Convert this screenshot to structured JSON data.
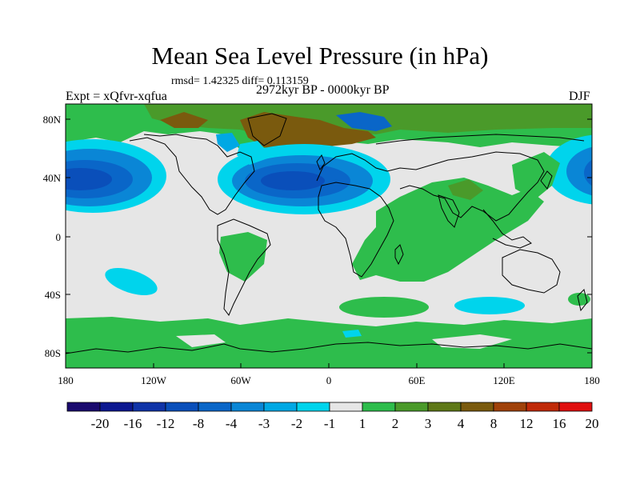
{
  "title": "Mean Sea Level Pressure (in hPa)",
  "stats": "rmsd= 1.42325 diff= 0.113159",
  "experiment": "Expt = xQfvr-xqfua",
  "period": "2972kyr BP - 0000kyr BP",
  "season": "DJF",
  "map": {
    "lat_ticks": [
      "80N",
      "40N",
      "0",
      "40S",
      "80S"
    ],
    "lon_ticks": [
      "180",
      "120W",
      "60W",
      "0",
      "60E",
      "120E",
      "180"
    ]
  },
  "colorbar": {
    "labels": [
      "-20",
      "-16",
      "-12",
      "-8",
      "-4",
      "-3",
      "-2",
      "-1",
      "1",
      "2",
      "3",
      "4",
      "8",
      "12",
      "16",
      "20"
    ],
    "colors": [
      "#1a0a6e",
      "#0c1890",
      "#1034a8",
      "#0a4fba",
      "#0a66c8",
      "#0a86d6",
      "#00a8e4",
      "#00d4ec",
      "#e6e6e6",
      "#2ebd4c",
      "#4a9a2a",
      "#5e7818",
      "#7a5a0e",
      "#a0420a",
      "#c02a08",
      "#e01010"
    ]
  },
  "colors": {
    "background": "#e6e6e6",
    "coastline": "#000000"
  }
}
